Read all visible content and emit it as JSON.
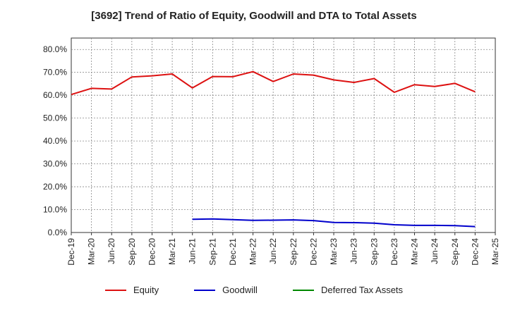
{
  "chart_data": {
    "type": "line",
    "title": "[3692]  Trend of Ratio of Equity, Goodwill and DTA to Total Assets",
    "xlabel": "",
    "ylabel": "",
    "ylim": [
      0,
      0.85
    ],
    "yticks": [
      0,
      0.1,
      0.2,
      0.3,
      0.4,
      0.5,
      0.6,
      0.7,
      0.8
    ],
    "ytick_labels": [
      "0.0%",
      "10.0%",
      "20.0%",
      "30.0%",
      "40.0%",
      "50.0%",
      "60.0%",
      "70.0%",
      "80.0%"
    ],
    "categories": [
      "Dec-19",
      "Mar-20",
      "Jun-20",
      "Sep-20",
      "Dec-20",
      "Mar-21",
      "Jun-21",
      "Sep-21",
      "Dec-21",
      "Mar-22",
      "Jun-22",
      "Sep-22",
      "Dec-22",
      "Mar-23",
      "Jun-23",
      "Sep-23",
      "Dec-23",
      "Mar-24",
      "Jun-24",
      "Sep-24",
      "Dec-24",
      "Mar-25"
    ],
    "grid": true,
    "legend_position": "bottom",
    "series": [
      {
        "name": "Equity",
        "color": "#dd1111",
        "values": [
          0.603,
          0.63,
          0.627,
          0.68,
          0.685,
          0.693,
          0.632,
          0.682,
          0.681,
          0.703,
          0.66,
          0.693,
          0.688,
          0.667,
          0.656,
          0.673,
          0.613,
          0.646,
          0.638,
          0.652,
          0.615,
          null
        ]
      },
      {
        "name": "Goodwill",
        "color": "#0000cc",
        "values": [
          null,
          null,
          null,
          null,
          null,
          null,
          0.058,
          0.059,
          0.056,
          0.053,
          0.054,
          0.055,
          0.052,
          0.044,
          0.043,
          0.041,
          0.034,
          0.031,
          0.031,
          0.03,
          0.026,
          null
        ]
      },
      {
        "name": "Deferred Tax Assets",
        "color": "#008800",
        "values": [
          null,
          null,
          null,
          null,
          null,
          null,
          null,
          null,
          null,
          null,
          null,
          null,
          null,
          null,
          null,
          null,
          null,
          null,
          null,
          null,
          null,
          null
        ]
      }
    ]
  }
}
